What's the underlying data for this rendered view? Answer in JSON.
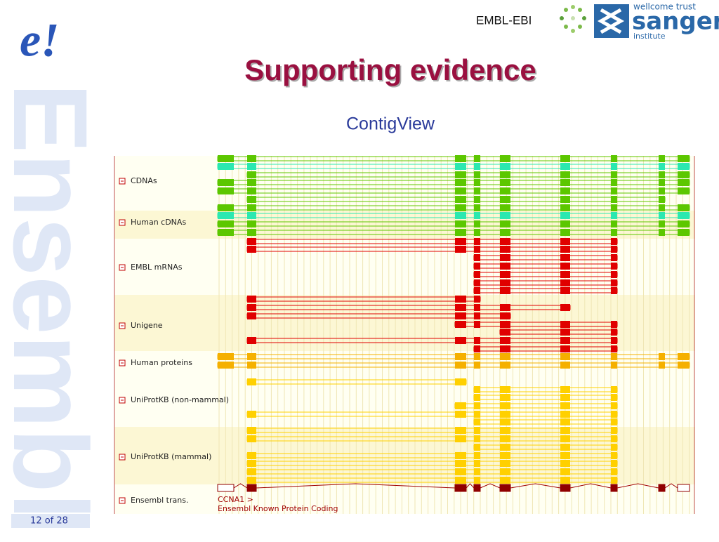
{
  "header": {
    "logo": "e!",
    "watermark": "Ensembl",
    "partner": "EMBL-EBI",
    "sanger_top": "wellcome trust",
    "sanger_name": "sanger",
    "sanger_bottom": "institute"
  },
  "title": "Supporting evidence",
  "subtitle": "ContigView",
  "tracks": [
    {
      "label": "CDNAs"
    },
    {
      "label": "Human cDNAs"
    },
    {
      "label": "EMBL mRNAs"
    },
    {
      "label": "Unigene"
    },
    {
      "label": "Human proteins"
    },
    {
      "label": "UniProtKB (non-mammal)"
    },
    {
      "label": "UniProtKB (mammal)"
    },
    {
      "label": "Ensembl trans."
    }
  ],
  "transcript": {
    "name": "CCNA1 >",
    "type": "Ensembl Known Protein Coding"
  },
  "footer": {
    "page": "12 of 28"
  }
}
